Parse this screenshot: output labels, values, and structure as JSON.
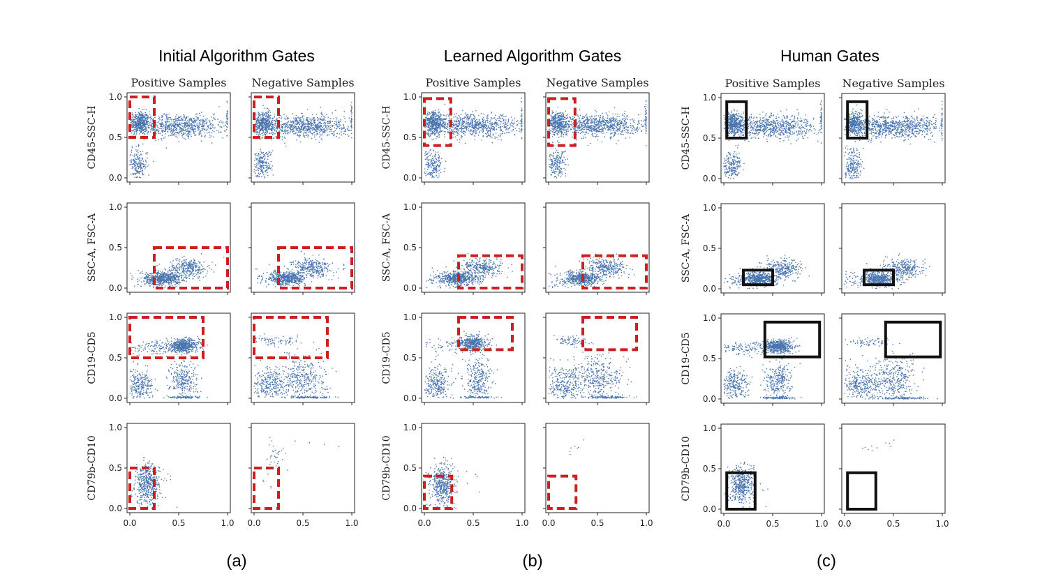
{
  "figure": {
    "groups": [
      {
        "title": "Initial Algorithm Gates",
        "caption": "(a)",
        "gate_style": "dashed"
      },
      {
        "title": "Learned Algorithm Gates",
        "caption": "(b)",
        "gate_style": "dashed"
      },
      {
        "title": "Human Gates",
        "caption": "(c)",
        "gate_style": "solid"
      }
    ],
    "column_titles": [
      "Positive Samples",
      "Negative Samples"
    ],
    "row_labels": [
      "CD45-SSC-H",
      "SSC-A, FSC-A",
      "CD19-CD5",
      "CD79b-CD10"
    ],
    "y_ticks": [
      "0.0",
      "0.5",
      "1.0"
    ],
    "x_ticks": [
      "0.0",
      "0.5",
      "1.0"
    ],
    "colors": {
      "points": "#4a76b0",
      "algorithm_gate": "#cc1f1f",
      "human_gate": "#111111"
    }
  },
  "chart_data": {
    "type": "scatter",
    "xlim": [
      0,
      1
    ],
    "ylim": [
      0,
      1
    ],
    "grid": false,
    "panels_note": "3 gate methods x 2 sample types x 4 marker pairs; rectangles are gates [x0, x1, y0, y1]",
    "gates": {
      "initial": [
        [
          [
            0.0,
            0.25,
            0.5,
            1.0
          ],
          [
            0.0,
            0.25,
            0.5,
            1.0
          ]
        ],
        [
          [
            0.25,
            1.0,
            0.0,
            0.5
          ],
          [
            0.25,
            1.0,
            0.0,
            0.5
          ]
        ],
        [
          [
            0.0,
            0.75,
            0.5,
            1.0
          ],
          [
            0.0,
            0.75,
            0.5,
            1.0
          ]
        ],
        [
          [
            0.0,
            0.25,
            0.0,
            0.5
          ],
          [
            0.0,
            0.25,
            0.0,
            0.5
          ]
        ]
      ],
      "learned": [
        [
          [
            0.0,
            0.27,
            0.4,
            0.98
          ],
          [
            0.0,
            0.27,
            0.4,
            0.98
          ]
        ],
        [
          [
            0.35,
            1.0,
            0.0,
            0.4
          ],
          [
            0.35,
            1.0,
            0.0,
            0.4
          ]
        ],
        [
          [
            0.35,
            0.9,
            0.6,
            1.0
          ],
          [
            0.35,
            0.9,
            0.6,
            1.0
          ]
        ],
        [
          [
            0.0,
            0.28,
            0.0,
            0.4
          ],
          [
            0.0,
            0.28,
            0.0,
            0.4
          ]
        ]
      ],
      "human": [
        [
          [
            0.03,
            0.23,
            0.5,
            0.95
          ],
          [
            0.03,
            0.23,
            0.5,
            0.95
          ]
        ],
        [
          [
            0.2,
            0.5,
            0.05,
            0.23
          ],
          [
            0.2,
            0.5,
            0.05,
            0.23
          ]
        ],
        [
          [
            0.42,
            0.98,
            0.52,
            0.95
          ],
          [
            0.42,
            0.98,
            0.52,
            0.95
          ]
        ],
        [
          [
            0.03,
            0.32,
            0.0,
            0.45
          ],
          [
            0.03,
            0.32,
            0.0,
            0.45
          ]
        ]
      ]
    },
    "clusters": {
      "row0_pos": [
        [
          0.1,
          0.68,
          0.05,
          0.07,
          700
        ],
        [
          0.5,
          0.64,
          0.25,
          0.07,
          1300
        ],
        [
          0.08,
          0.16,
          0.05,
          0.1,
          350
        ],
        [
          1.0,
          0.75,
          0.005,
          0.13,
          120
        ]
      ],
      "row0_neg": [
        [
          0.1,
          0.68,
          0.05,
          0.07,
          600
        ],
        [
          0.5,
          0.64,
          0.25,
          0.07,
          1400
        ],
        [
          0.08,
          0.16,
          0.05,
          0.1,
          350
        ],
        [
          1.0,
          0.75,
          0.005,
          0.13,
          120
        ]
      ],
      "row1_pos": [
        [
          0.35,
          0.12,
          0.09,
          0.04,
          900
        ],
        [
          0.6,
          0.25,
          0.1,
          0.06,
          500
        ],
        [
          0.2,
          0.1,
          0.15,
          0.07,
          150
        ]
      ],
      "row1_neg": [
        [
          0.35,
          0.12,
          0.09,
          0.04,
          800
        ],
        [
          0.6,
          0.25,
          0.1,
          0.06,
          500
        ],
        [
          0.2,
          0.1,
          0.15,
          0.07,
          150
        ]
      ],
      "row2_pos": [
        [
          0.55,
          0.65,
          0.08,
          0.04,
          900
        ],
        [
          0.3,
          0.62,
          0.2,
          0.04,
          250
        ],
        [
          0.1,
          0.15,
          0.07,
          0.1,
          450
        ],
        [
          0.55,
          0.22,
          0.07,
          0.12,
          450
        ],
        [
          0.55,
          0.01,
          0.08,
          0.008,
          150
        ]
      ],
      "row2_neg": [
        [
          0.25,
          0.7,
          0.12,
          0.03,
          120
        ],
        [
          0.15,
          0.17,
          0.1,
          0.1,
          500
        ],
        [
          0.5,
          0.25,
          0.12,
          0.14,
          600
        ],
        [
          0.6,
          0.01,
          0.12,
          0.008,
          200
        ]
      ],
      "row3_pos": [
        [
          0.18,
          0.3,
          0.06,
          0.12,
          700
        ],
        [
          0.2,
          0.25,
          0.15,
          0.15,
          80
        ]
      ],
      "row3_neg": [
        [
          0.22,
          0.65,
          0.05,
          0.07,
          45
        ],
        [
          0.5,
          0.8,
          0.25,
          0.08,
          12
        ],
        [
          0.18,
          0.3,
          0.04,
          0.1,
          8
        ]
      ],
      "row2_learned_pos": [
        [
          0.5,
          0.68,
          0.07,
          0.05,
          700
        ],
        [
          0.3,
          0.65,
          0.2,
          0.05,
          120
        ],
        [
          0.12,
          0.18,
          0.07,
          0.1,
          450
        ],
        [
          0.55,
          0.22,
          0.07,
          0.12,
          450
        ],
        [
          0.55,
          0.01,
          0.08,
          0.008,
          150
        ]
      ],
      "row3_learned_neg": [
        [
          0.22,
          0.75,
          0.04,
          0.05,
          6
        ],
        [
          0.4,
          0.78,
          0.06,
          0.05,
          5
        ]
      ],
      "row3_human_neg": [
        [
          0.25,
          0.75,
          0.04,
          0.05,
          10
        ],
        [
          0.5,
          0.85,
          0.1,
          0.04,
          6
        ]
      ]
    }
  }
}
